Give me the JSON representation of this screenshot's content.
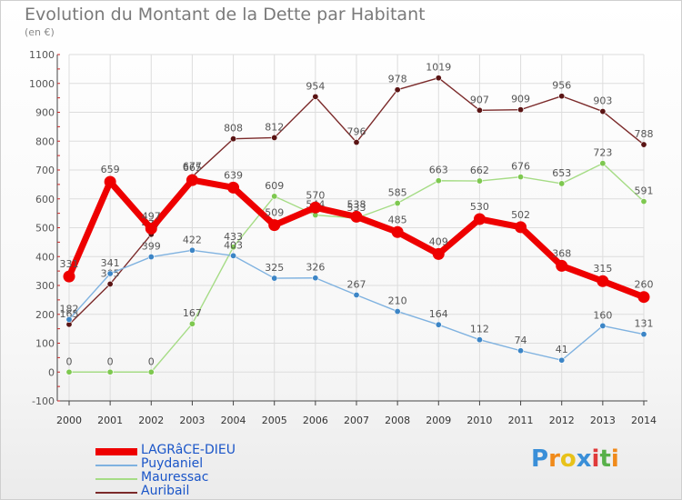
{
  "title": "Evolution du Montant de la Dette par Habitant",
  "unit": "(en €)",
  "colors": {
    "grid": "#dddddd",
    "axis": "#444444",
    "text": "#555555"
  },
  "logo": {
    "letters": [
      "P",
      "r",
      "o",
      "x",
      "i",
      "t",
      "i"
    ],
    "colors": [
      "#3a8fd8",
      "#f08a1a",
      "#e8c21a",
      "#3a8fd8",
      "#e03a3a",
      "#58b04a",
      "#f08a1a"
    ]
  },
  "chart_data": {
    "type": "line",
    "x": [
      2000,
      2001,
      2002,
      2003,
      2004,
      2005,
      2006,
      2007,
      2008,
      2009,
      2010,
      2011,
      2012,
      2013,
      2014
    ],
    "ylim": [
      -100,
      1100
    ],
    "yticks": [
      -100,
      0,
      100,
      200,
      300,
      400,
      500,
      600,
      700,
      800,
      900,
      1000,
      1100
    ],
    "grid": true,
    "legend": "bottom",
    "series": [
      {
        "name": "Auribail",
        "color": "#7b2a2a",
        "marker": "#5a1414",
        "width": 1.4,
        "radius": 3.2,
        "values": [
          165,
          305,
          477,
          677,
          808,
          812,
          954,
          796,
          978,
          1019,
          907,
          909,
          956,
          903,
          788
        ]
      },
      {
        "name": "Mauressac",
        "color": "#a6dc86",
        "marker": "#7ec850",
        "width": 1.4,
        "radius": 3.2,
        "values": [
          0,
          0,
          0,
          167,
          433,
          609,
          544,
          533,
          585,
          663,
          662,
          676,
          653,
          723,
          591
        ]
      },
      {
        "name": "Puydaniel",
        "color": "#7fb2e0",
        "marker": "#3c85c6",
        "width": 1.4,
        "radius": 3.2,
        "values": [
          182,
          341,
          399,
          422,
          403,
          325,
          326,
          267,
          210,
          164,
          112,
          74,
          41,
          160,
          131
        ]
      },
      {
        "name": "LAGRâCE-DIEU",
        "color": "#ee0000",
        "marker": "#ee0000",
        "width": 7,
        "radius": 6.5,
        "values": [
          331,
          659,
          497,
          665,
          639,
          509,
          570,
          538,
          485,
          409,
          530,
          502,
          368,
          315,
          260
        ]
      }
    ]
  }
}
